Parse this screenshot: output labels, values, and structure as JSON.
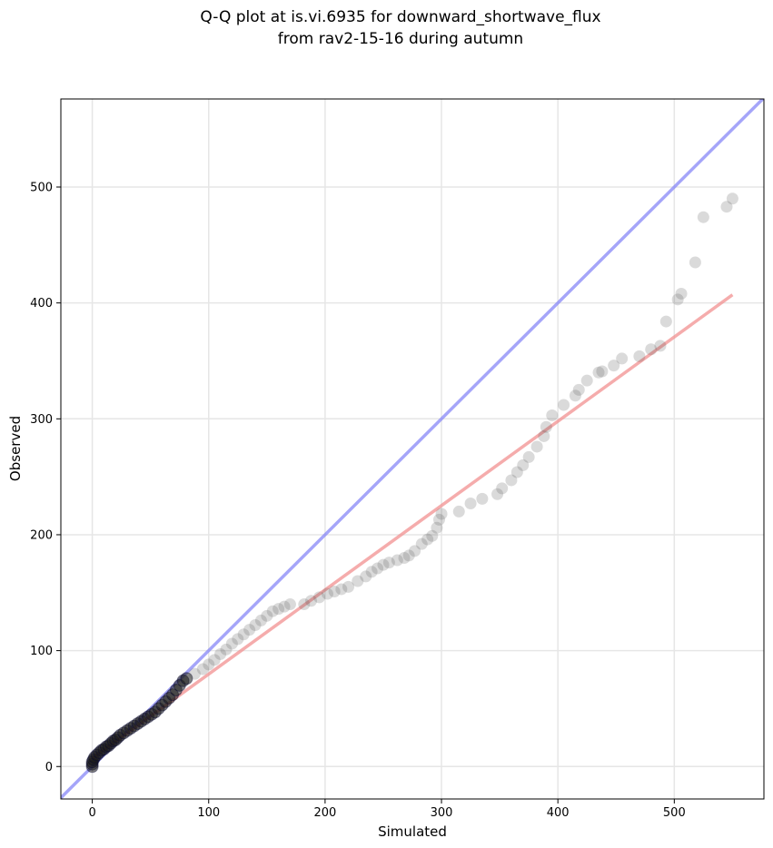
{
  "chart_data": {
    "type": "scatter",
    "title_line1": "Q-Q plot at is.vi.6935 for downward_shortwave_flux",
    "title_line2": "from rav2-15-16 during autumn",
    "xlabel": "Simulated",
    "ylabel": "Observed",
    "xlim": [
      -27,
      577
    ],
    "ylim": [
      -28,
      576
    ],
    "xticks": [
      0,
      100,
      200,
      300,
      400,
      500
    ],
    "yticks": [
      0,
      100,
      200,
      300,
      400,
      500
    ],
    "xtick_labels": [
      "0",
      "100",
      "200",
      "300",
      "400",
      "500"
    ],
    "ytick_labels": [
      "0",
      "100",
      "200",
      "300",
      "400",
      "500"
    ],
    "grid": true,
    "identity_line": {
      "color": "#7f7ff7",
      "from": [
        -27,
        -27
      ],
      "to": [
        577,
        577
      ]
    },
    "fit_line": {
      "color": "#f29090",
      "from": [
        0,
        7
      ],
      "to": [
        550,
        407
      ]
    },
    "points": [
      [
        0,
        0
      ],
      [
        0,
        2
      ],
      [
        0,
        4
      ],
      [
        1,
        6
      ],
      [
        2,
        8
      ],
      [
        4,
        10
      ],
      [
        6,
        12
      ],
      [
        8,
        14
      ],
      [
        10,
        15
      ],
      [
        12,
        17
      ],
      [
        14,
        18
      ],
      [
        16,
        20
      ],
      [
        18,
        22
      ],
      [
        20,
        23
      ],
      [
        22,
        25
      ],
      [
        24,
        27
      ],
      [
        27,
        29
      ],
      [
        30,
        31
      ],
      [
        33,
        33
      ],
      [
        36,
        35
      ],
      [
        39,
        37
      ],
      [
        42,
        39
      ],
      [
        45,
        41
      ],
      [
        48,
        43
      ],
      [
        51,
        45
      ],
      [
        54,
        47
      ],
      [
        57,
        50
      ],
      [
        60,
        53
      ],
      [
        63,
        56
      ],
      [
        66,
        59
      ],
      [
        69,
        62
      ],
      [
        72,
        66
      ],
      [
        75,
        70
      ],
      [
        78,
        74
      ],
      [
        81,
        76
      ],
      [
        88,
        80
      ],
      [
        95,
        84
      ],
      [
        100,
        88
      ],
      [
        105,
        92
      ],
      [
        110,
        97
      ],
      [
        115,
        101
      ],
      [
        120,
        106
      ],
      [
        125,
        110
      ],
      [
        130,
        114
      ],
      [
        135,
        118
      ],
      [
        140,
        122
      ],
      [
        145,
        126
      ],
      [
        150,
        130
      ],
      [
        155,
        134
      ],
      [
        160,
        136
      ],
      [
        165,
        138
      ],
      [
        170,
        140
      ],
      [
        182,
        140
      ],
      [
        188,
        143
      ],
      [
        195,
        146
      ],
      [
        202,
        149
      ],
      [
        208,
        151
      ],
      [
        214,
        153
      ],
      [
        220,
        155
      ],
      [
        228,
        160
      ],
      [
        235,
        164
      ],
      [
        240,
        168
      ],
      [
        245,
        171
      ],
      [
        250,
        174
      ],
      [
        255,
        176
      ],
      [
        262,
        178
      ],
      [
        268,
        180
      ],
      [
        272,
        182
      ],
      [
        277,
        186
      ],
      [
        283,
        192
      ],
      [
        288,
        196
      ],
      [
        292,
        199
      ],
      [
        296,
        206
      ],
      [
        298,
        213
      ],
      [
        300,
        218
      ],
      [
        315,
        220
      ],
      [
        325,
        227
      ],
      [
        335,
        231
      ],
      [
        348,
        235
      ],
      [
        352,
        240
      ],
      [
        360,
        247
      ],
      [
        365,
        254
      ],
      [
        370,
        260
      ],
      [
        375,
        267
      ],
      [
        382,
        276
      ],
      [
        388,
        285
      ],
      [
        390,
        293
      ],
      [
        395,
        303
      ],
      [
        405,
        312
      ],
      [
        415,
        320
      ],
      [
        418,
        325
      ],
      [
        425,
        333
      ],
      [
        435,
        340
      ],
      [
        438,
        341
      ],
      [
        448,
        346
      ],
      [
        455,
        352
      ],
      [
        470,
        354
      ],
      [
        480,
        360
      ],
      [
        488,
        363
      ],
      [
        493,
        384
      ],
      [
        503,
        403
      ],
      [
        506,
        408
      ],
      [
        518,
        435
      ],
      [
        525,
        474
      ],
      [
        545,
        483
      ],
      [
        550,
        490
      ]
    ]
  }
}
